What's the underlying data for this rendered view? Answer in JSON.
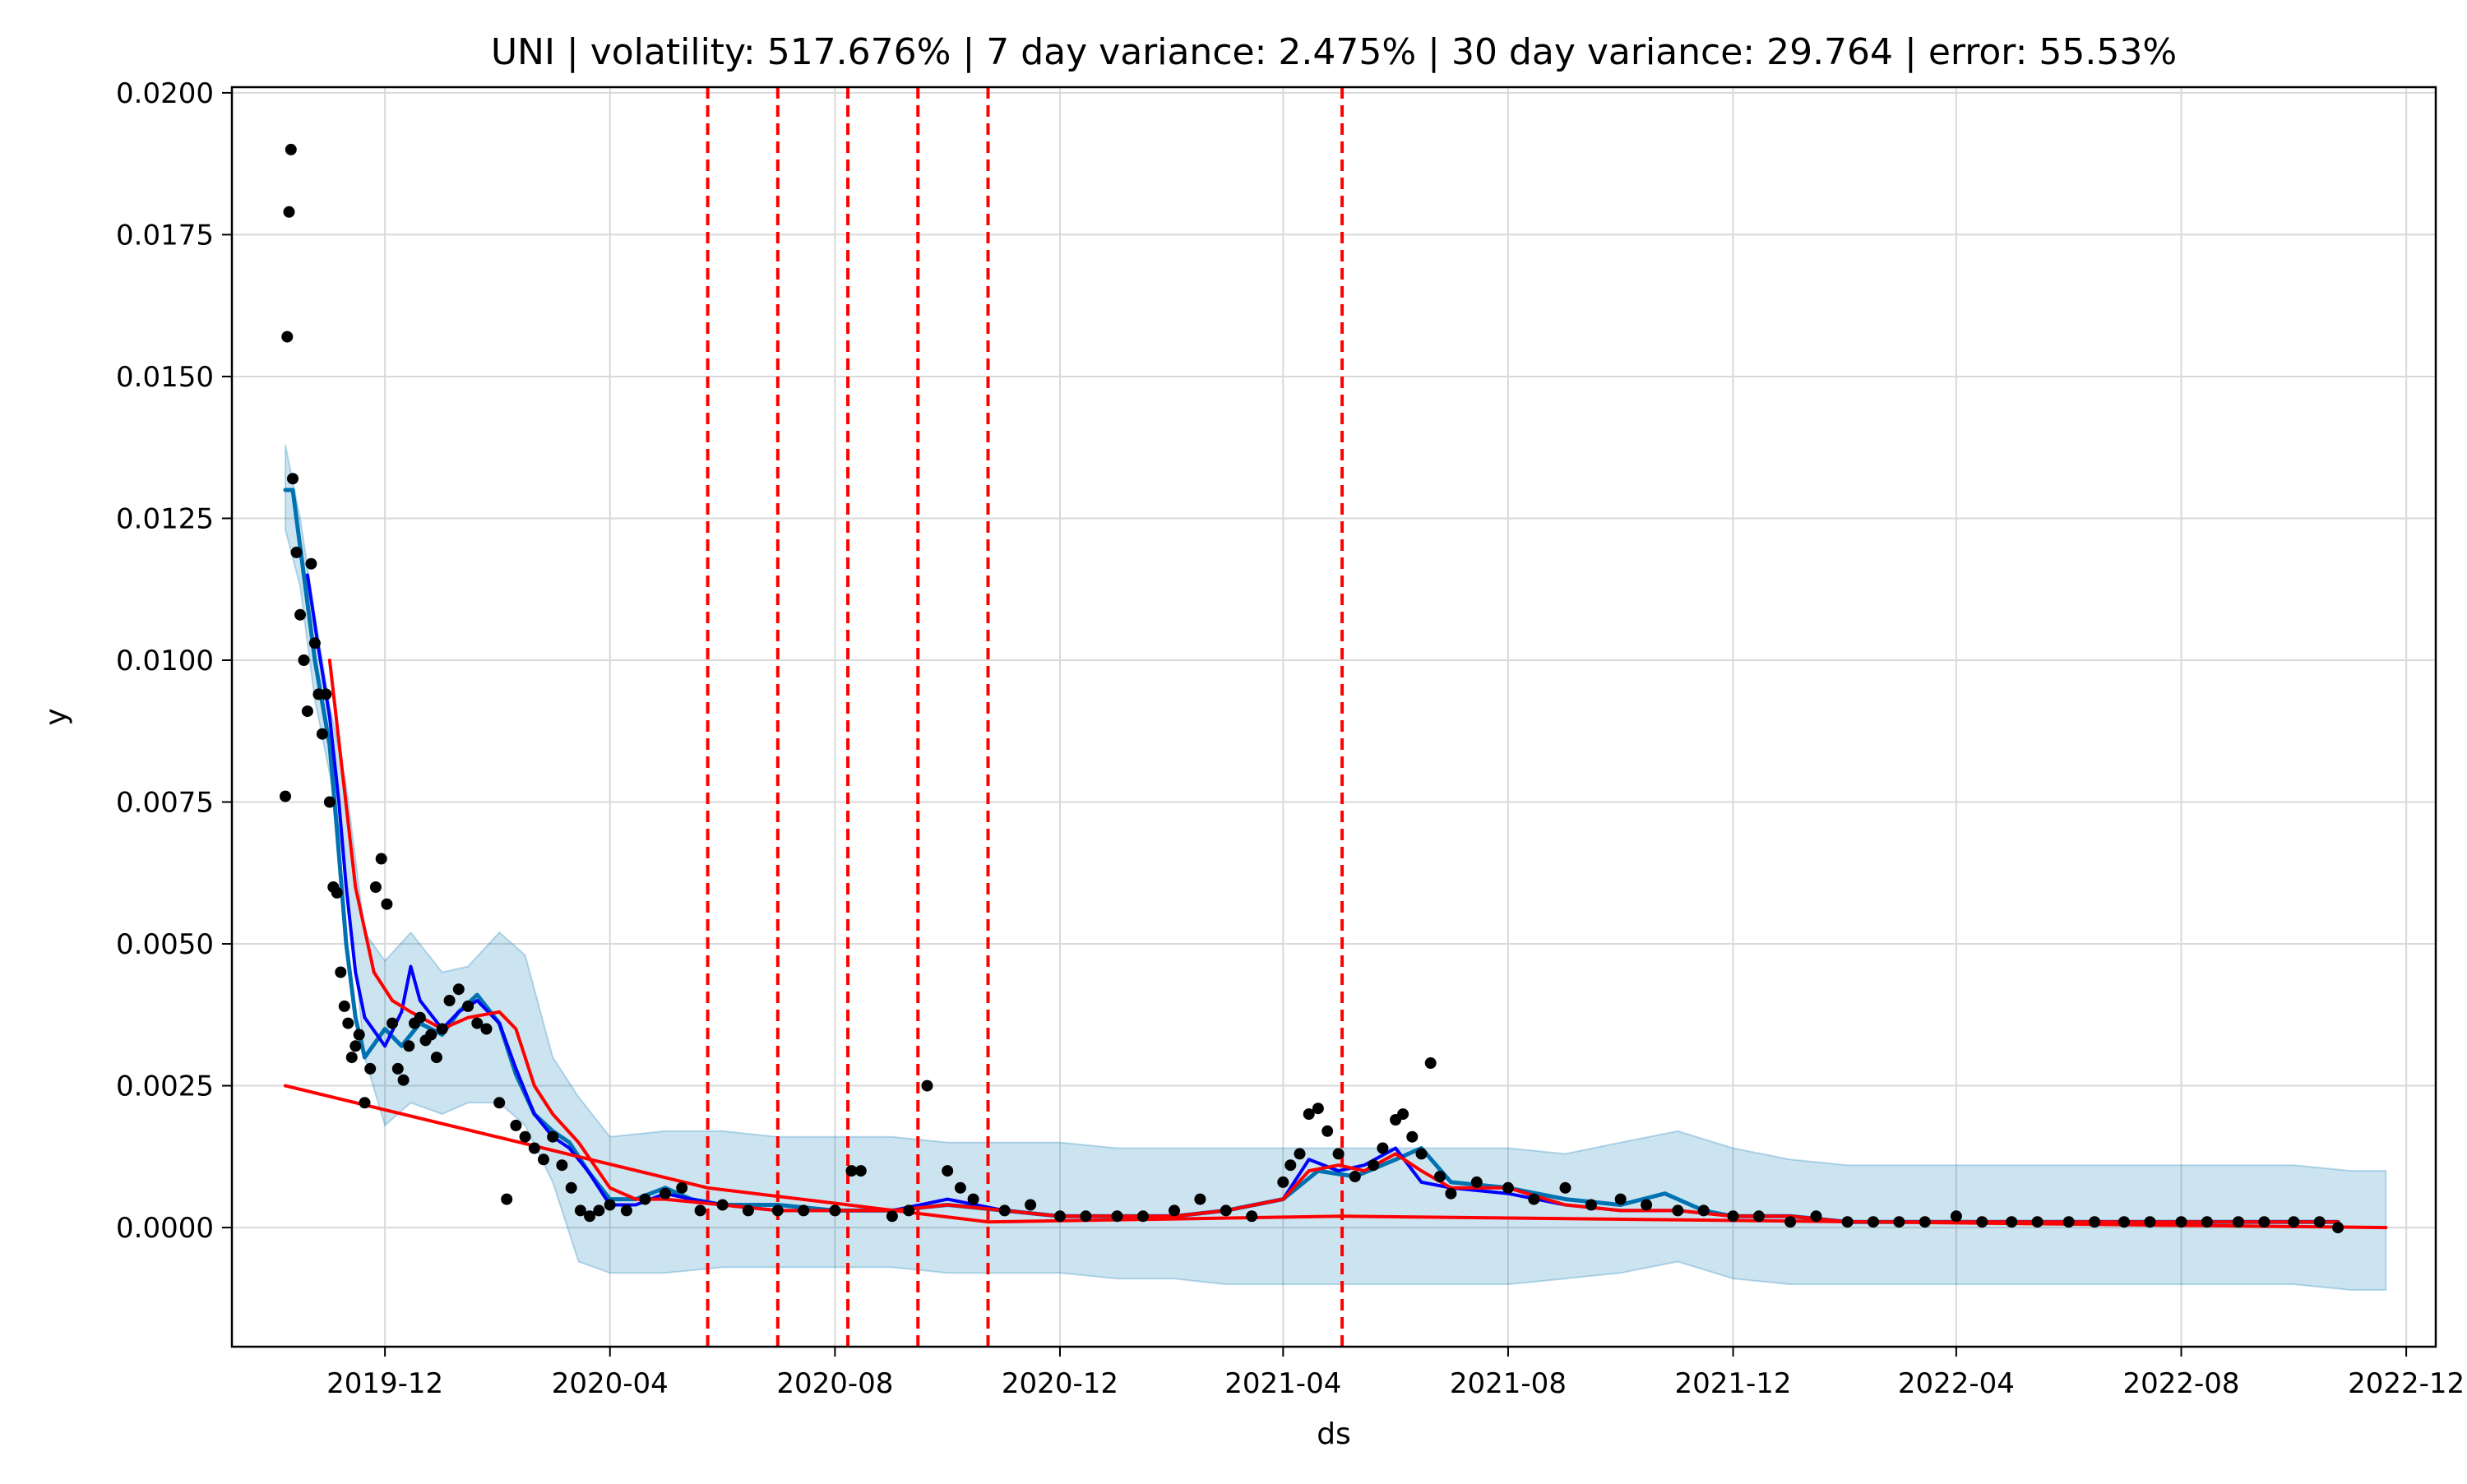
{
  "chart_data": {
    "type": "line",
    "title": "UNI | volatility: 517.676% | 7 day variance: 2.475% | 30 day variance: 29.764 | error: 55.53%",
    "xlabel": "ds",
    "ylabel": "y",
    "xlim": [
      "2019-09-09",
      "2022-12-17"
    ],
    "ylim": [
      -0.0021,
      0.0201
    ],
    "grid": true,
    "x_ticks": [
      "2019-12",
      "2020-04",
      "2020-08",
      "2020-12",
      "2021-04",
      "2021-08",
      "2021-12",
      "2022-04",
      "2022-08",
      "2022-12"
    ],
    "y_ticks": [
      "0.0000",
      "0.0025",
      "0.0050",
      "0.0075",
      "0.0100",
      "0.0125",
      "0.0150",
      "0.0175",
      "0.0200"
    ],
    "changepoints": [
      "2020-05-24",
      "2020-07-01",
      "2020-08-08",
      "2020-09-15",
      "2020-10-23",
      "2021-05-03"
    ],
    "colors": {
      "observed": "#000000",
      "forecast": "#0072B2",
      "uncertainty": "#0072B2",
      "moving_avg_short": "#0000ff",
      "moving_avg_long": "#ff0000",
      "trend": "#ff0000",
      "changepoint": "#ff0000"
    },
    "series": [
      {
        "role": "uncertainty_interval",
        "x": [
          "2019-10-08",
          "2019-10-16",
          "2019-10-24",
          "2019-11-01",
          "2019-11-10",
          "2019-11-20",
          "2019-12-01",
          "2019-12-15",
          "2020-01-01",
          "2020-01-15",
          "2020-02-01",
          "2020-02-15",
          "2020-03-01",
          "2020-03-15",
          "2020-04-01",
          "2020-05-01",
          "2020-06-01",
          "2020-07-01",
          "2020-08-01",
          "2020-09-01",
          "2020-10-01",
          "2020-11-01",
          "2020-12-01",
          "2021-01-01",
          "2021-02-01",
          "2021-03-01",
          "2021-04-01",
          "2021-05-01",
          "2021-06-01",
          "2021-07-01",
          "2021-08-01",
          "2021-09-01",
          "2021-10-01",
          "2021-11-01",
          "2021-12-01",
          "2022-01-01",
          "2022-02-01",
          "2022-03-01",
          "2022-04-01",
          "2022-05-01",
          "2022-06-01",
          "2022-07-01",
          "2022-08-01",
          "2022-09-01",
          "2022-10-01",
          "2022-11-01",
          "2022-11-20"
        ],
        "upper": [
          0.0138,
          0.0125,
          0.0108,
          0.0092,
          0.0078,
          0.0052,
          0.0047,
          0.0052,
          0.0045,
          0.0046,
          0.0052,
          0.0048,
          0.003,
          0.0023,
          0.0016,
          0.0017,
          0.0017,
          0.0016,
          0.0016,
          0.0016,
          0.0015,
          0.0015,
          0.0015,
          0.0014,
          0.0014,
          0.0014,
          0.0014,
          0.0014,
          0.0014,
          0.0014,
          0.0014,
          0.0013,
          0.0015,
          0.0017,
          0.0014,
          0.0012,
          0.0011,
          0.0011,
          0.0011,
          0.0011,
          0.0011,
          0.0011,
          0.0011,
          0.0011,
          0.0011,
          0.001,
          0.001
        ],
        "lower": [
          0.0123,
          0.0113,
          0.0093,
          0.008,
          0.0062,
          0.003,
          0.0018,
          0.0022,
          0.002,
          0.0022,
          0.0022,
          0.0018,
          0.0008,
          -0.0006,
          -0.0008,
          -0.0008,
          -0.0007,
          -0.0007,
          -0.0007,
          -0.0007,
          -0.0008,
          -0.0008,
          -0.0008,
          -0.0009,
          -0.0009,
          -0.001,
          -0.001,
          -0.001,
          -0.001,
          -0.001,
          -0.001,
          -0.0009,
          -0.0008,
          -0.0006,
          -0.0009,
          -0.001,
          -0.001,
          -0.001,
          -0.001,
          -0.001,
          -0.001,
          -0.001,
          -0.001,
          -0.001,
          -0.001,
          -0.0011,
          -0.0011
        ]
      },
      {
        "role": "forecast",
        "x": [
          "2019-10-08",
          "2019-10-12",
          "2019-10-18",
          "2019-10-24",
          "2019-11-01",
          "2019-11-05",
          "2019-11-10",
          "2019-11-15",
          "2019-11-20",
          "2019-12-01",
          "2019-12-10",
          "2019-12-20",
          "2020-01-01",
          "2020-01-10",
          "2020-01-20",
          "2020-02-01",
          "2020-02-10",
          "2020-02-20",
          "2020-03-01",
          "2020-03-10",
          "2020-03-20",
          "2020-04-01",
          "2020-04-15",
          "2020-05-01",
          "2020-05-15",
          "2020-06-01",
          "2020-07-01",
          "2020-08-01",
          "2020-09-01",
          "2020-10-01",
          "2020-11-01",
          "2020-12-01",
          "2021-01-01",
          "2021-02-01",
          "2021-03-01",
          "2021-04-01",
          "2021-04-20",
          "2021-05-10",
          "2021-06-01",
          "2021-06-15",
          "2021-07-01",
          "2021-08-01",
          "2021-09-01",
          "2021-10-01",
          "2021-10-25",
          "2021-11-15",
          "2021-12-01",
          "2022-01-01",
          "2022-02-01",
          "2022-03-01",
          "2022-04-01",
          "2022-05-01",
          "2022-06-01",
          "2022-07-01",
          "2022-08-01",
          "2022-09-01",
          "2022-10-01",
          "2022-10-25"
        ],
        "values": [
          0.013,
          0.013,
          0.0115,
          0.01,
          0.0085,
          0.007,
          0.005,
          0.0037,
          0.003,
          0.0035,
          0.0032,
          0.0036,
          0.0034,
          0.0038,
          0.0041,
          0.0036,
          0.0027,
          0.002,
          0.0017,
          0.0015,
          0.001,
          0.0005,
          0.0005,
          0.0007,
          0.0005,
          0.0004,
          0.0004,
          0.0003,
          0.0003,
          0.0004,
          0.0003,
          0.0002,
          0.0002,
          0.0002,
          0.0003,
          0.0005,
          0.001,
          0.0009,
          0.0012,
          0.0014,
          0.0008,
          0.0007,
          0.0005,
          0.0004,
          0.0006,
          0.0003,
          0.0002,
          0.0002,
          0.0001,
          0.0001,
          0.0001,
          0.0001,
          0.0001,
          0.0001,
          0.0001,
          0.0001,
          0.0001,
          0.0001
        ]
      },
      {
        "role": "moving_average_short",
        "x": [
          "2019-10-20",
          "2019-10-26",
          "2019-11-01",
          "2019-11-06",
          "2019-11-10",
          "2019-11-15",
          "2019-11-20",
          "2019-12-01",
          "2019-12-10",
          "2019-12-15",
          "2019-12-20",
          "2020-01-01",
          "2020-01-10",
          "2020-01-20",
          "2020-02-01",
          "2020-02-10",
          "2020-02-20",
          "2020-03-01",
          "2020-03-10",
          "2020-03-20",
          "2020-04-01",
          "2020-04-15",
          "2020-05-01",
          "2020-05-15",
          "2020-06-01",
          "2020-07-01",
          "2020-08-01",
          "2020-09-01",
          "2020-10-01",
          "2020-11-01",
          "2020-12-01",
          "2021-01-01",
          "2021-02-01",
          "2021-03-01",
          "2021-04-01",
          "2021-04-15",
          "2021-05-01",
          "2021-05-15",
          "2021-06-01",
          "2021-06-15",
          "2021-07-01",
          "2021-08-01",
          "2021-09-01",
          "2021-10-01",
          "2021-11-01",
          "2021-12-01",
          "2022-01-01",
          "2022-02-01",
          "2022-03-01",
          "2022-04-01",
          "2022-05-01",
          "2022-06-01",
          "2022-07-01",
          "2022-08-01",
          "2022-09-01",
          "2022-10-01",
          "2022-10-25"
        ],
        "values": [
          0.0115,
          0.0102,
          0.009,
          0.0075,
          0.006,
          0.0045,
          0.0037,
          0.0032,
          0.0038,
          0.0046,
          0.004,
          0.0035,
          0.0038,
          0.004,
          0.0036,
          0.0028,
          0.002,
          0.0016,
          0.0014,
          0.001,
          0.0004,
          0.0004,
          0.0006,
          0.0005,
          0.0004,
          0.0003,
          0.0003,
          0.0003,
          0.0005,
          0.0003,
          0.0002,
          0.0002,
          0.0002,
          0.0003,
          0.0005,
          0.0012,
          0.001,
          0.0011,
          0.0014,
          0.0008,
          0.0007,
          0.0006,
          0.0004,
          0.0003,
          0.0003,
          0.0002,
          0.0002,
          0.0001,
          0.0001,
          0.0001,
          0.0001,
          0.0001,
          0.0001,
          0.0001,
          0.0001,
          0.0001,
          0.0001
        ]
      },
      {
        "role": "moving_average_long",
        "x": [
          "2019-11-01",
          "2019-11-08",
          "2019-11-15",
          "2019-11-25",
          "2019-12-05",
          "2019-12-15",
          "2020-01-01",
          "2020-01-15",
          "2020-02-01",
          "2020-02-10",
          "2020-02-20",
          "2020-03-01",
          "2020-03-15",
          "2020-04-01",
          "2020-04-15",
          "2020-05-01",
          "2020-06-01",
          "2020-07-01",
          "2020-08-01",
          "2020-09-01",
          "2020-10-01",
          "2020-11-01",
          "2020-12-01",
          "2021-01-01",
          "2021-02-01",
          "2021-03-01",
          "2021-04-01",
          "2021-04-15",
          "2021-05-01",
          "2021-05-15",
          "2021-06-01",
          "2021-06-15",
          "2021-07-01",
          "2021-08-01",
          "2021-09-01",
          "2021-10-01",
          "2021-11-01",
          "2021-12-01",
          "2022-01-01",
          "2022-02-01",
          "2022-03-01",
          "2022-04-01",
          "2022-05-01",
          "2022-06-01",
          "2022-07-01",
          "2022-08-01",
          "2022-09-01",
          "2022-10-01",
          "2022-10-25"
        ],
        "values": [
          0.01,
          0.008,
          0.006,
          0.0045,
          0.004,
          0.0038,
          0.0035,
          0.0037,
          0.0038,
          0.0035,
          0.0025,
          0.002,
          0.0015,
          0.0007,
          0.0005,
          0.0005,
          0.0004,
          0.0003,
          0.0003,
          0.0003,
          0.0004,
          0.0003,
          0.0002,
          0.0002,
          0.0002,
          0.0003,
          0.0005,
          0.001,
          0.0011,
          0.001,
          0.0013,
          0.001,
          0.0007,
          0.0007,
          0.0004,
          0.0003,
          0.0003,
          0.0002,
          0.0002,
          0.0001,
          0.0001,
          0.0001,
          0.0001,
          0.0001,
          0.0001,
          0.0001,
          0.0001,
          0.0001,
          0.0001
        ]
      },
      {
        "role": "trend",
        "x": [
          "2019-10-08",
          "2020-05-24",
          "2020-10-23",
          "2021-05-03",
          "2022-11-20"
        ],
        "values": [
          0.0025,
          0.0007,
          0.0001,
          0.0002,
          0.0
        ]
      },
      {
        "role": "observed",
        "x": [
          "2019-10-08",
          "2019-10-09",
          "2019-10-10",
          "2019-10-11",
          "2019-10-12",
          "2019-10-14",
          "2019-10-16",
          "2019-10-18",
          "2019-10-20",
          "2019-10-22",
          "2019-10-24",
          "2019-10-26",
          "2019-10-28",
          "2019-10-30",
          "2019-11-01",
          "2019-11-03",
          "2019-11-05",
          "2019-11-07",
          "2019-11-09",
          "2019-11-11",
          "2019-11-13",
          "2019-11-15",
          "2019-11-17",
          "2019-11-20",
          "2019-11-23",
          "2019-11-26",
          "2019-11-29",
          "2019-12-02",
          "2019-12-05",
          "2019-12-08",
          "2019-12-11",
          "2019-12-14",
          "2019-12-17",
          "2019-12-20",
          "2019-12-23",
          "2019-12-26",
          "2019-12-29",
          "2020-01-01",
          "2020-01-05",
          "2020-01-10",
          "2020-01-15",
          "2020-01-20",
          "2020-01-25",
          "2020-02-01",
          "2020-02-05",
          "2020-02-10",
          "2020-02-15",
          "2020-02-20",
          "2020-02-25",
          "2020-03-01",
          "2020-03-06",
          "2020-03-11",
          "2020-03-16",
          "2020-03-21",
          "2020-03-26",
          "2020-04-01",
          "2020-04-10",
          "2020-04-20",
          "2020-05-01",
          "2020-05-10",
          "2020-05-20",
          "2020-06-01",
          "2020-06-15",
          "2020-07-01",
          "2020-07-15",
          "2020-08-01",
          "2020-08-10",
          "2020-08-15",
          "2020-09-01",
          "2020-09-10",
          "2020-09-20",
          "2020-10-01",
          "2020-10-08",
          "2020-10-15",
          "2020-11-01",
          "2020-11-15",
          "2020-12-01",
          "2020-12-15",
          "2021-01-01",
          "2021-01-15",
          "2021-02-01",
          "2021-02-15",
          "2021-03-01",
          "2021-03-15",
          "2021-04-01",
          "2021-04-05",
          "2021-04-10",
          "2021-04-15",
          "2021-04-20",
          "2021-04-25",
          "2021-05-01",
          "2021-05-10",
          "2021-05-20",
          "2021-05-25",
          "2021-06-01",
          "2021-06-05",
          "2021-06-10",
          "2021-06-15",
          "2021-06-20",
          "2021-06-25",
          "2021-07-01",
          "2021-07-15",
          "2021-08-01",
          "2021-08-15",
          "2021-09-01",
          "2021-09-15",
          "2021-10-01",
          "2021-10-15",
          "2021-11-01",
          "2021-11-15",
          "2021-12-01",
          "2021-12-15",
          "2022-01-01",
          "2022-01-15",
          "2022-02-01",
          "2022-02-15",
          "2022-03-01",
          "2022-03-15",
          "2022-04-01",
          "2022-04-15",
          "2022-05-01",
          "2022-05-15",
          "2022-06-01",
          "2022-06-15",
          "2022-07-01",
          "2022-07-15",
          "2022-08-01",
          "2022-08-15",
          "2022-09-01",
          "2022-09-15",
          "2022-10-01",
          "2022-10-15",
          "2022-10-25"
        ],
        "values": [
          0.0076,
          0.0157,
          0.0179,
          0.019,
          0.0132,
          0.0119,
          0.0108,
          0.01,
          0.0091,
          0.0117,
          0.0103,
          0.0094,
          0.0087,
          0.0094,
          0.0075,
          0.006,
          0.0059,
          0.0045,
          0.0039,
          0.0036,
          0.003,
          0.0032,
          0.0034,
          0.0022,
          0.0028,
          0.006,
          0.0065,
          0.0057,
          0.0036,
          0.0028,
          0.0026,
          0.0032,
          0.0036,
          0.0037,
          0.0033,
          0.0034,
          0.003,
          0.0035,
          0.004,
          0.0042,
          0.0039,
          0.0036,
          0.0035,
          0.0022,
          0.0005,
          0.0018,
          0.0016,
          0.0014,
          0.0012,
          0.0016,
          0.0011,
          0.0007,
          0.0003,
          0.0002,
          0.0003,
          0.0004,
          0.0003,
          0.0005,
          0.0006,
          0.0007,
          0.0003,
          0.0004,
          0.0003,
          0.0003,
          0.0003,
          0.0003,
          0.001,
          0.001,
          0.0002,
          0.0003,
          0.0025,
          0.001,
          0.0007,
          0.0005,
          0.0003,
          0.0004,
          0.0002,
          0.0002,
          0.0002,
          0.0002,
          0.0003,
          0.0005,
          0.0003,
          0.0002,
          0.0008,
          0.0011,
          0.0013,
          0.002,
          0.0021,
          0.0017,
          0.0013,
          0.0009,
          0.0011,
          0.0014,
          0.0019,
          0.002,
          0.0016,
          0.0013,
          0.0029,
          0.0009,
          0.0006,
          0.0008,
          0.0007,
          0.0005,
          0.0007,
          0.0004,
          0.0005,
          0.0004,
          0.0003,
          0.0003,
          0.0002,
          0.0002,
          0.0001,
          0.0002,
          0.0001,
          0.0001,
          0.0001,
          0.0001,
          0.0002,
          0.0001,
          0.0001,
          0.0001,
          0.0001,
          0.0001,
          0.0001,
          0.0001,
          0.0001,
          0.0001,
          0.0001,
          0.0001,
          0.0001,
          0.0001,
          0.0
        ]
      }
    ]
  }
}
